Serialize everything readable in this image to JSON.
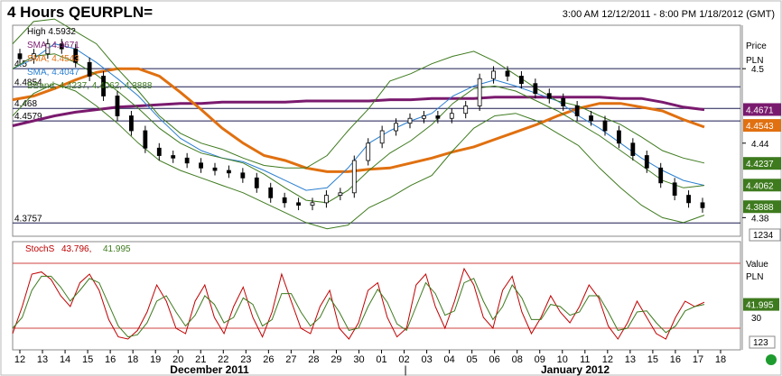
{
  "header": {
    "title": "4 Hours QEURPLN=",
    "range": "3:00 AM 12/12/2011 - 8:00 PM 1/18/2012 (GMT)"
  },
  "chart_data": [
    {
      "type": "candlestick",
      "title": "4 Hours QEURPLN=",
      "ylabel": "Price PLN",
      "unit_label": "Price",
      "currency_label": "PLN",
      "scale_factor": "1234",
      "ylim": [
        4.365,
        4.535
      ],
      "yticks": [
        4.38,
        4.44,
        4.5
      ],
      "horizontal_lines": [
        4.5,
        4.4854,
        4.468,
        4.4579,
        4.3757
      ],
      "horizontal_line_labels": [
        "4.5",
        "4.4854",
        "4.468",
        "4.4579",
        "4.3757"
      ],
      "legend": [
        {
          "text": "High 4.5932",
          "color": "#000000"
        },
        {
          "text": "SMA, 4.4671",
          "color": "#7a1a6e"
        },
        {
          "text": "SMA, 4.4543",
          "color": "#e07010"
        },
        {
          "text": "SMA, 4.4047",
          "color": "#2a7fd0"
        },
        {
          "text": "BBand, 4.4237, 4.4062, 4.3888",
          "color": "#3e7a1e"
        }
      ],
      "price_tags": [
        {
          "value": 4.4671,
          "label": "4.4671",
          "color": "#7a1a6e"
        },
        {
          "value": 4.4543,
          "label": "4.4543",
          "color": "#e07010"
        },
        {
          "value": 4.4237,
          "label": "4.4237",
          "color": "#3e7a1e"
        },
        {
          "value": 4.4062,
          "label": "4.4062",
          "color": "#3e7a1e"
        },
        {
          "value": 4.3888,
          "label": "4.3888",
          "color": "#3e7a1e"
        }
      ],
      "series": [
        {
          "name": "SMA, 4.4671",
          "color": "#7a1a6e",
          "values": [
            4.454,
            4.458,
            4.462,
            4.465,
            4.467,
            4.469,
            4.47,
            4.471,
            4.472,
            4.472,
            4.473,
            4.473,
            4.473,
            4.473,
            4.474,
            4.474,
            4.474,
            4.474,
            4.475,
            4.475,
            4.476,
            4.476,
            4.476,
            4.477,
            4.477,
            4.477,
            4.477,
            4.477,
            4.477,
            4.476,
            4.476,
            4.473,
            4.469,
            4.467
          ]
        },
        {
          "name": "SMA, 4.4543",
          "color": "#e07010",
          "values": [
            4.475,
            4.478,
            4.484,
            4.491,
            4.497,
            4.5,
            4.5,
            4.494,
            4.481,
            4.467,
            4.452,
            4.44,
            4.43,
            4.426,
            4.42,
            4.417,
            4.417,
            4.419,
            4.42,
            4.424,
            4.428,
            4.433,
            4.437,
            4.443,
            4.449,
            4.455,
            4.462,
            4.468,
            4.472,
            4.472,
            4.469,
            4.466,
            4.459,
            4.453
          ]
        },
        {
          "name": "SMA, 4.4047",
          "color": "#2a7fd0",
          "values": [
            4.5,
            4.508,
            4.52,
            4.516,
            4.505,
            4.492,
            4.478,
            4.46,
            4.444,
            4.434,
            4.428,
            4.425,
            4.418,
            4.41,
            4.402,
            4.404,
            4.42,
            4.44,
            4.45,
            4.458,
            4.464,
            4.478,
            4.486,
            4.491,
            4.486,
            4.48,
            4.474,
            4.462,
            4.452,
            4.44,
            4.428,
            4.418,
            4.41,
            4.406
          ]
        },
        {
          "name": "BBand upper",
          "color": "#3e7a1e",
          "values": [
            4.52,
            4.538,
            4.54,
            4.53,
            4.52,
            4.5,
            4.482,
            4.462,
            4.448,
            4.44,
            4.435,
            4.428,
            4.422,
            4.42,
            4.42,
            4.43,
            4.45,
            4.468,
            4.49,
            4.496,
            4.504,
            4.51,
            4.514,
            4.506,
            4.495,
            4.484,
            4.474,
            4.47,
            4.462,
            4.455,
            4.445,
            4.434,
            4.428,
            4.424
          ]
        },
        {
          "name": "BBand middle",
          "color": "#3e7a1e",
          "values": [
            4.5,
            4.51,
            4.512,
            4.505,
            4.495,
            4.482,
            4.468,
            4.452,
            4.44,
            4.432,
            4.428,
            4.424,
            4.415,
            4.404,
            4.394,
            4.392,
            4.402,
            4.418,
            4.432,
            4.442,
            4.455,
            4.472,
            4.484,
            4.486,
            4.482,
            4.474,
            4.466,
            4.456,
            4.446,
            4.434,
            4.422,
            4.41,
            4.404,
            4.406
          ]
        },
        {
          "name": "BBand lower",
          "color": "#3e7a1e",
          "values": [
            4.462,
            4.48,
            4.488,
            4.482,
            4.47,
            4.456,
            4.44,
            4.426,
            4.418,
            4.412,
            4.406,
            4.4,
            4.392,
            4.384,
            4.376,
            4.371,
            4.374,
            4.388,
            4.396,
            4.406,
            4.414,
            4.434,
            4.452,
            4.462,
            4.464,
            4.458,
            4.448,
            4.438,
            4.42,
            4.404,
            4.39,
            4.38,
            4.376,
            4.382
          ]
        }
      ],
      "candles_close": [
        4.508,
        4.512,
        4.52,
        4.516,
        4.505,
        4.494,
        4.478,
        4.462,
        4.45,
        4.436,
        4.43,
        4.428,
        4.424,
        4.42,
        4.418,
        4.416,
        4.412,
        4.404,
        4.396,
        4.392,
        4.39,
        4.392,
        4.398,
        4.4,
        4.426,
        4.44,
        4.45,
        4.456,
        4.46,
        4.462,
        4.46,
        4.464,
        4.47,
        4.492,
        4.498,
        4.494,
        4.488,
        4.48,
        4.476,
        4.47,
        4.462,
        4.458,
        4.45,
        4.44,
        4.43,
        4.42,
        4.408,
        4.398,
        4.392,
        4.388
      ]
    },
    {
      "type": "line",
      "title": "StochS",
      "ylabel": "Value PLN",
      "unit_label": "Value",
      "currency_label": "PLN",
      "scale_factor": "123",
      "ylim": [
        0,
        100
      ],
      "yticks": [
        30
      ],
      "horizontal_lines": [
        80,
        20
      ],
      "price_tags": [
        {
          "value": 41.995,
          "label": "41.995",
          "color": "#3e7a1e"
        }
      ],
      "legend": [
        {
          "text": "StochS",
          "color": "#c00000"
        },
        {
          "text": "43.796,",
          "color": "#c00000"
        },
        {
          "text": "41.995",
          "color": "#3e7a1e"
        }
      ],
      "series": [
        {
          "name": "StochS %K",
          "color": "#c00000",
          "values": [
            15,
            40,
            70,
            72,
            65,
            50,
            40,
            62,
            70,
            55,
            28,
            12,
            10,
            18,
            35,
            60,
            45,
            20,
            15,
            45,
            60,
            30,
            15,
            40,
            58,
            30,
            12,
            35,
            70,
            45,
            20,
            15,
            40,
            55,
            20,
            10,
            25,
            55,
            62,
            30,
            12,
            20,
            60,
            70,
            40,
            20,
            45,
            75,
            60,
            30,
            20,
            55,
            68,
            35,
            15,
            30,
            50,
            35,
            25,
            40,
            60,
            48,
            22,
            10,
            25,
            45,
            30,
            15,
            10,
            30,
            45,
            40,
            44
          ]
        },
        {
          "name": "StochS %D",
          "color": "#3e7a1e",
          "values": [
            20,
            30,
            55,
            68,
            68,
            58,
            45,
            55,
            66,
            62,
            42,
            22,
            12,
            14,
            25,
            45,
            50,
            35,
            22,
            32,
            50,
            42,
            25,
            30,
            48,
            42,
            22,
            28,
            52,
            52,
            35,
            22,
            30,
            48,
            35,
            18,
            20,
            40,
            56,
            44,
            24,
            18,
            40,
            62,
            52,
            32,
            36,
            62,
            66,
            45,
            28,
            40,
            60,
            48,
            28,
            28,
            42,
            40,
            32,
            35,
            50,
            50,
            35,
            18,
            20,
            35,
            36,
            25,
            16,
            22,
            36,
            40,
            42
          ]
        }
      ]
    }
  ],
  "x_axis": {
    "ticks": [
      "12",
      "13",
      "14",
      "15",
      "16",
      "18",
      "19",
      "20",
      "21",
      "22",
      "23",
      "26",
      "27",
      "28",
      "29",
      "30",
      "01",
      "02",
      "03",
      "04",
      "05",
      "06",
      "08",
      "09",
      "10",
      "11",
      "12",
      "13",
      "15",
      "16",
      "17",
      "18"
    ],
    "month_labels": [
      "December 2011",
      "January 2012"
    ],
    "divider": "|"
  }
}
